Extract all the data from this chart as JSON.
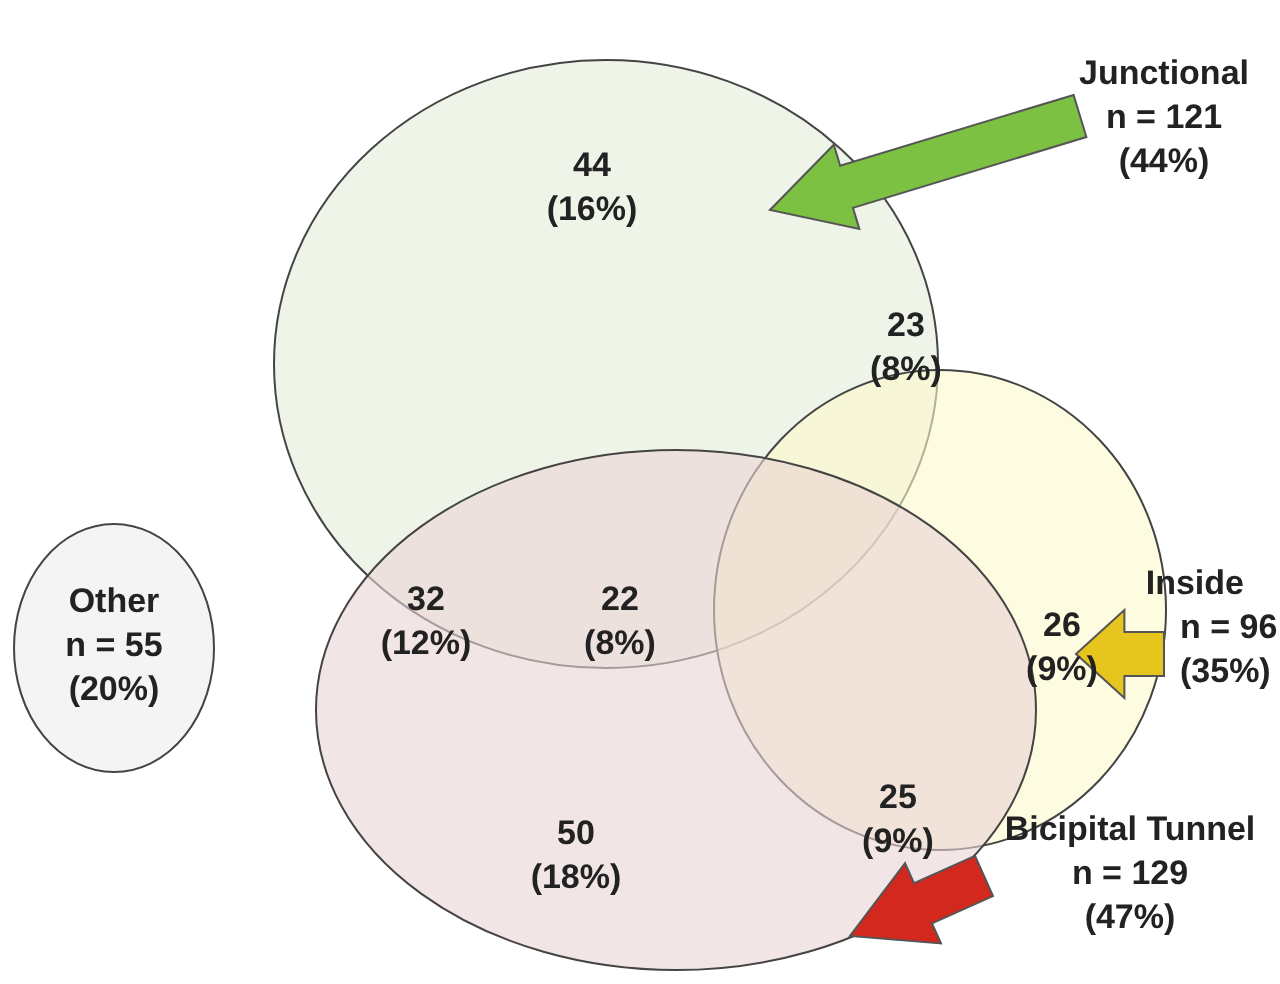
{
  "chart_data": {
    "type": "other",
    "categories": [
      null,
      null,
      null,
      null,
      null,
      null,
      null
    ],
    "values": [
      44,
      23,
      32,
      22,
      26,
      25,
      50
    ],
    "value_labels": [
      "44 (16%)",
      "23 (8%)",
      "32 (12%)",
      "22 (8%)",
      "26 (9%)",
      "25 (9%)",
      "50 (18%)"
    ],
    "annotations": [
      "Junctional\nn = 121\n(44%)",
      "Inside\nn = 96\n(35%)",
      "Bicipital Tunnel\nn = 129\n(47%)",
      "Other\nn = 55\n(20%)"
    ]
  }
}
